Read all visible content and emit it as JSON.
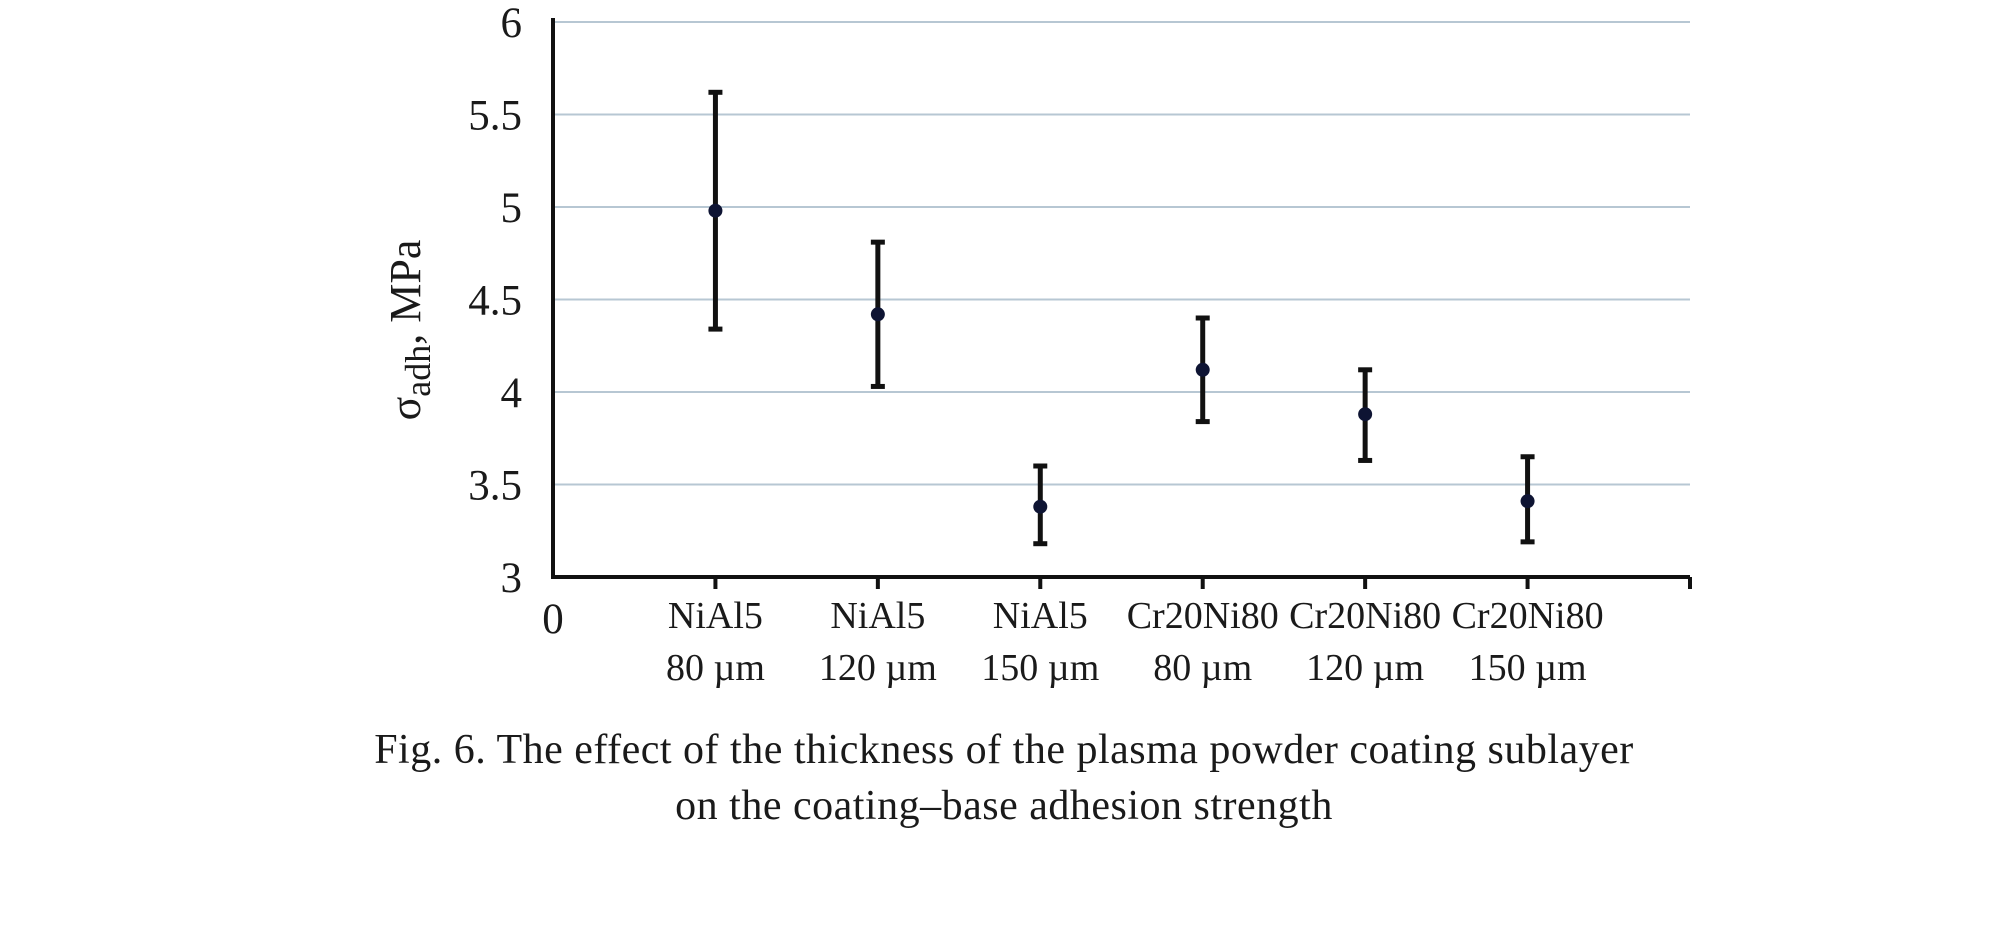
{
  "chart_data": {
    "type": "scatter",
    "errorbars": true,
    "categories": [
      [
        "NiAl5",
        "80 µm"
      ],
      [
        "NiAl5",
        "120 µm"
      ],
      [
        "NiAl5",
        "150 µm"
      ],
      [
        "Cr20Ni80",
        "80 µm"
      ],
      [
        "Cr20Ni80",
        "120 µm"
      ],
      [
        "Cr20Ni80",
        "150 µm"
      ]
    ],
    "values": [
      4.98,
      4.42,
      3.38,
      4.12,
      3.88,
      3.41
    ],
    "err_low": [
      4.34,
      4.03,
      3.18,
      3.84,
      3.63,
      3.19
    ],
    "err_high": [
      5.62,
      4.81,
      3.6,
      4.4,
      4.12,
      3.65
    ],
    "ylabel": {
      "symbol": "σ",
      "subscript": "adh",
      "unit": ", MPa"
    },
    "ylim": [
      3,
      6
    ],
    "yticks": [
      "3",
      "3.5",
      "4",
      "4.5",
      "5",
      "5.5",
      "6"
    ],
    "x_origin_label": "0",
    "grid": "horizontal",
    "colors": {
      "marker": "#0e1433",
      "axis": "#111111",
      "grid": "#b7c7d3"
    }
  },
  "caption": {
    "line1": "Fig. 6. The effect of the thickness of the plasma powder coating sublayer",
    "line2": "on the coating–base adhesion strength"
  }
}
